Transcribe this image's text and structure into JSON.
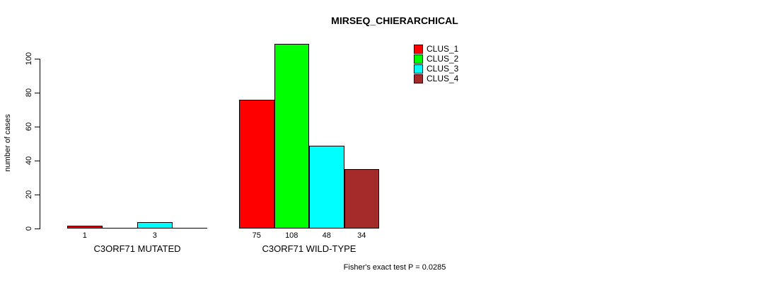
{
  "chart_data": {
    "type": "bar",
    "title": "MIRSEQ_CHIERARCHICAL",
    "ylabel": "number of cases",
    "xlabel": "",
    "footnote": "Fisher's exact test P = 0.0285",
    "yticks": [
      0,
      20,
      40,
      60,
      80,
      100
    ],
    "ylim": [
      0,
      108
    ],
    "grid": false,
    "legend_position": "top-right",
    "legend": [
      {
        "label": "CLUS_1",
        "color": "#ff0000"
      },
      {
        "label": "CLUS_2",
        "color": "#00ff00"
      },
      {
        "label": "CLUS_3",
        "color": "#00ffff"
      },
      {
        "label": "CLUS_4",
        "color": "#a52a2a"
      }
    ],
    "categories": [
      "C3ORF71 MUTATED",
      "C3ORF71 WILD-TYPE"
    ],
    "series": [
      {
        "name": "CLUS_1",
        "color": "#ff0000",
        "values": [
          1,
          75
        ]
      },
      {
        "name": "CLUS_2",
        "color": "#00ff00",
        "values": [
          0,
          108
        ]
      },
      {
        "name": "CLUS_3",
        "color": "#00ffff",
        "values": [
          3,
          48
        ]
      },
      {
        "name": "CLUS_4",
        "color": "#a52a2a",
        "values": [
          0,
          34
        ]
      }
    ],
    "groups": [
      {
        "label": "C3ORF71 MUTATED",
        "values": [
          1,
          0,
          3,
          0
        ],
        "bar_labels": [
          "1",
          "",
          "3",
          ""
        ]
      },
      {
        "label": "C3ORF71 WILD-TYPE",
        "values": [
          75,
          108,
          48,
          34
        ],
        "bar_labels": [
          "75",
          "108",
          "48",
          "34"
        ]
      }
    ]
  }
}
